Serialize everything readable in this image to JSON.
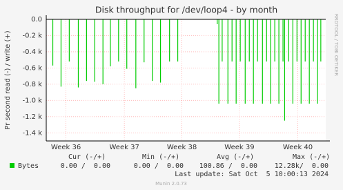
{
  "chart_data": {
    "type": "bar",
    "title": "Disk throughput for /dev/loop4 - by month",
    "y_label": "Pr second read (-) / write (+)",
    "side_text": "RRDTOOL / TOBI OETIKER",
    "x": [
      0.8,
      1.8,
      2.8,
      3.9,
      4.9,
      5.9,
      6.9,
      7.8,
      8.8,
      9.8,
      10.9,
      11.9,
      12.9,
      13.9,
      15.0,
      16.0,
      20.8,
      21.0,
      21.4,
      22.1,
      22.6,
      23.1,
      23.6,
      24.2,
      24.7,
      25.2,
      25.7,
      26.3,
      26.8,
      27.3,
      27.8,
      28.3,
      28.8,
      29.0,
      29.5,
      30.0,
      30.5,
      31.0,
      31.5,
      32.0,
      32.5,
      33.0,
      33.4
    ],
    "series": [
      {
        "name": "Bytes",
        "color": "#00cc00",
        "values": [
          -570,
          -830,
          -520,
          -840,
          -760,
          -770,
          -800,
          -580,
          -520,
          -610,
          -850,
          -530,
          -760,
          -780,
          -520,
          -520,
          -60,
          -1040,
          -520,
          -1040,
          -520,
          -1040,
          -520,
          -1040,
          -520,
          -1040,
          -520,
          -1040,
          -520,
          -1040,
          -520,
          -1040,
          -520,
          -1250,
          -520,
          -1040,
          -520,
          -1040,
          -520,
          -1040,
          -520,
          -1040,
          -520
        ]
      }
    ],
    "xlim": [
      0,
      34
    ],
    "xticks": [
      {
        "value": 2.4,
        "label": "Week 36"
      },
      {
        "value": 9.5,
        "label": "Week 37"
      },
      {
        "value": 16.5,
        "label": "Week 38"
      },
      {
        "value": 23.5,
        "label": "Week 39"
      },
      {
        "value": 30.6,
        "label": "Week 40"
      }
    ],
    "ylim": [
      -1500,
      0
    ],
    "yticks": [
      {
        "value": 0,
        "label": "0.0"
      },
      {
        "value": -200,
        "label": "-0.2 k"
      },
      {
        "value": -400,
        "label": "-0.4 k"
      },
      {
        "value": -600,
        "label": "-0.6 k"
      },
      {
        "value": -800,
        "label": "-0.8 k"
      },
      {
        "value": -1000,
        "label": "-1.0 k"
      },
      {
        "value": -1200,
        "label": "-1.2 k"
      },
      {
        "value": -1400,
        "label": "-1.4 k"
      }
    ],
    "grid": true,
    "stats_headers": [
      "Cur (-/+)",
      "Min (-/+)",
      "Avg (-/+)",
      "Max (-/+)"
    ],
    "stats": [
      "0.00 /  0.00",
      "0.00 /  0.00",
      "100.86 /  0.00",
      "12.28k/  0.00"
    ],
    "last_update": "Last update: Sat Oct  5 10:00:13 2024",
    "footer": "Munin 2.0.73"
  }
}
